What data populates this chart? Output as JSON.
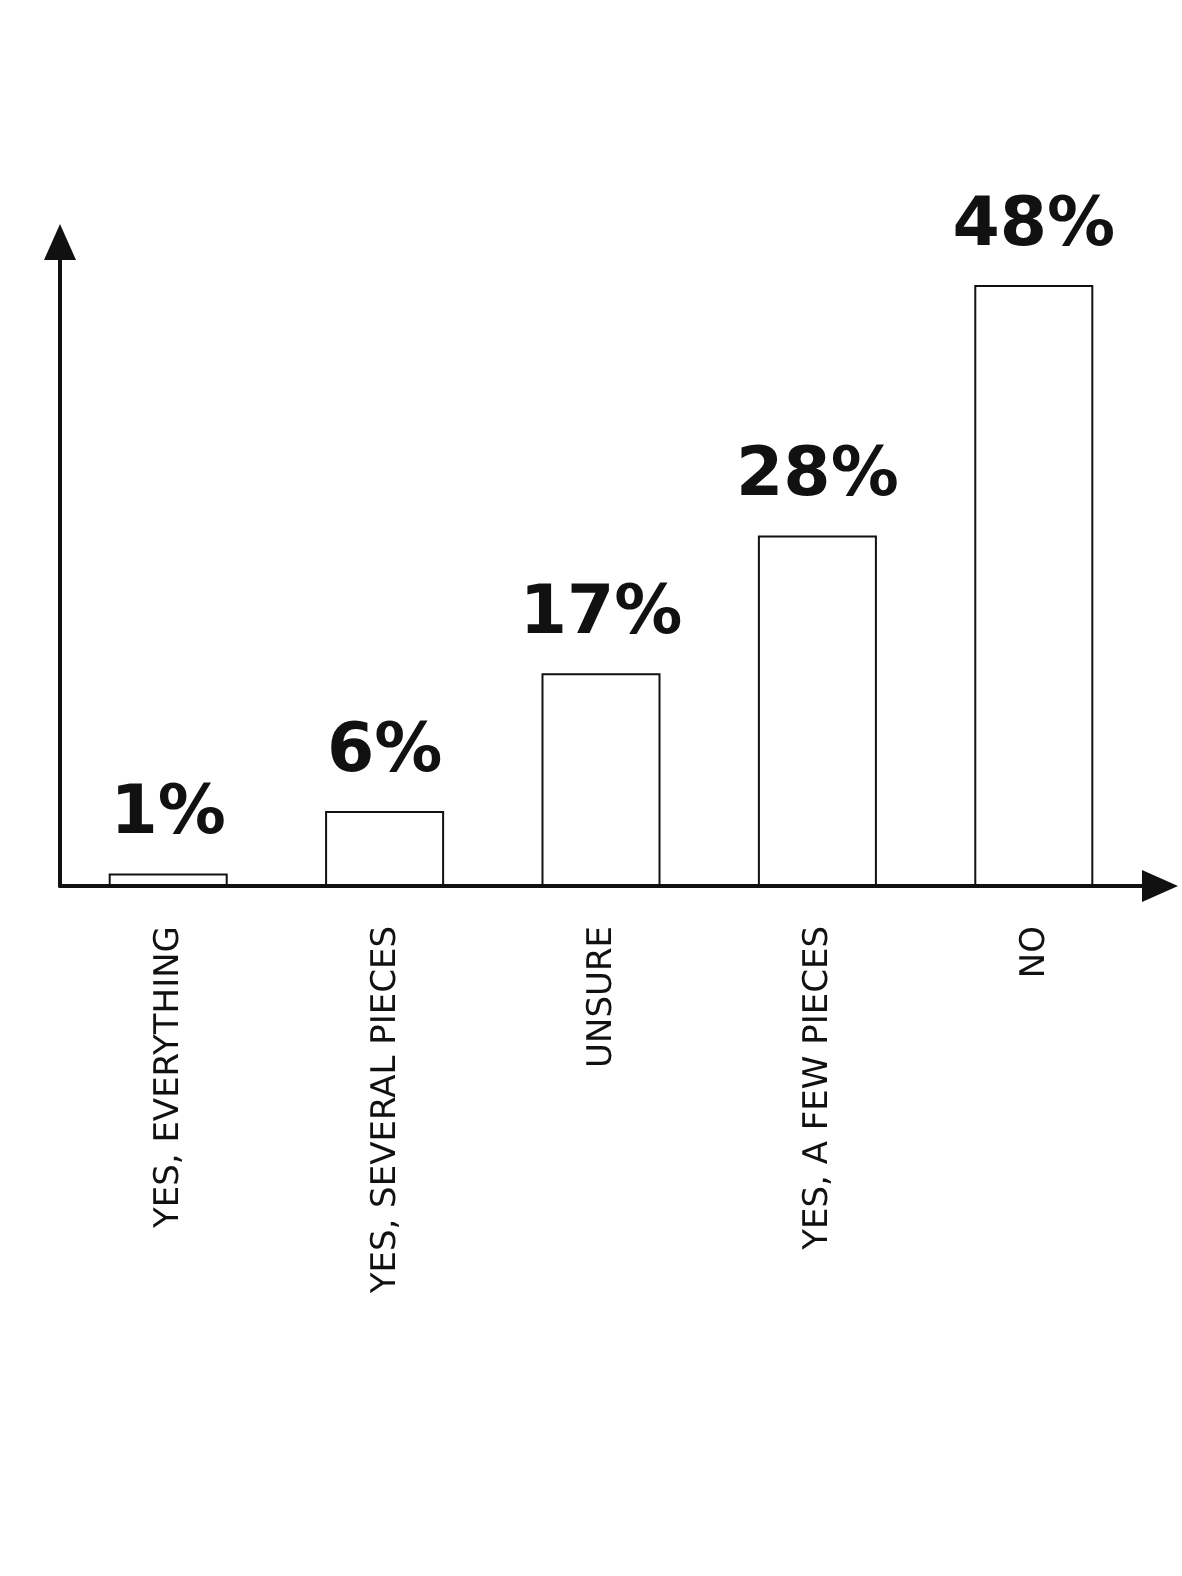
{
  "chart_data": {
    "type": "bar",
    "categories": [
      "YES, EVERYTHING",
      "YES, SEVERAL PIECES",
      "UNSURE",
      "YES, A FEW PIECES",
      "NO"
    ],
    "values": [
      1,
      6,
      17,
      28,
      48
    ],
    "value_labels": [
      "1%",
      "6%",
      "17%",
      "28%",
      "48%"
    ],
    "color": "#ffffff",
    "tick_labels": "x",
    "grid": false
  }
}
